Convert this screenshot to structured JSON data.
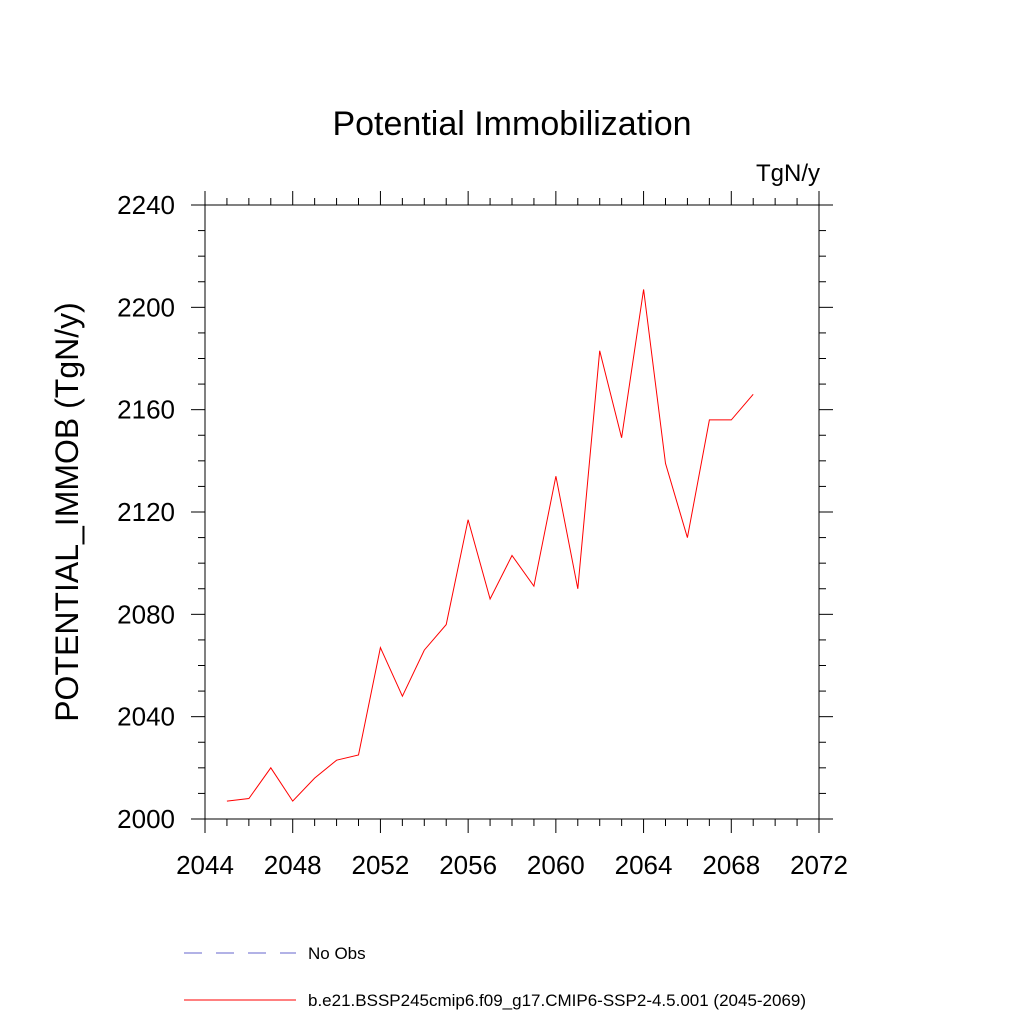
{
  "chart_data": {
    "type": "line",
    "title": "Potential Immobilization",
    "units_label": "TgN/y",
    "ylabel": "POTENTIAL_IMMOB  (TgN/y)",
    "xlabel": "",
    "xlim": [
      2044,
      2072
    ],
    "ylim": [
      2000,
      2240
    ],
    "x_major_ticks": [
      2044,
      2048,
      2052,
      2056,
      2060,
      2064,
      2068,
      2072
    ],
    "x_tick_labels": [
      "2044",
      "2048",
      "2052",
      "2056",
      "2060",
      "2064",
      "2068",
      "2072"
    ],
    "y_major_ticks": [
      2000,
      2040,
      2080,
      2120,
      2160,
      2200,
      2240
    ],
    "y_tick_labels": [
      "2000",
      "2040",
      "2080",
      "2120",
      "2160",
      "2200",
      "2240"
    ],
    "grid": false,
    "legend_position": "bottom",
    "series": [
      {
        "name": "b.e21.BSSP245cmip6.f09_g17.CMIP6-SSP2-4.5.001 (2045-2069)",
        "color": "#ff0000",
        "style": "solid",
        "x": [
          2045,
          2046,
          2047,
          2048,
          2049,
          2050,
          2051,
          2052,
          2053,
          2054,
          2055,
          2056,
          2057,
          2058,
          2059,
          2060,
          2061,
          2062,
          2063,
          2064,
          2065,
          2066,
          2067,
          2068,
          2069
        ],
        "y": [
          2007,
          2008,
          2020,
          2007,
          2016,
          2023,
          2025,
          2067,
          2048,
          2066,
          2076,
          2117,
          2086,
          2103,
          2091,
          2134,
          2090,
          2183,
          2149,
          2207,
          2139,
          2110,
          2156,
          2156,
          2166
        ]
      }
    ],
    "legend": [
      {
        "label": "No Obs",
        "color": "#6666cc",
        "style": "dashed"
      },
      {
        "label": "b.e21.BSSP245cmip6.f09_g17.CMIP6-SSP2-4.5.001 (2045-2069)",
        "color": "#ff0000",
        "style": "solid"
      }
    ]
  }
}
